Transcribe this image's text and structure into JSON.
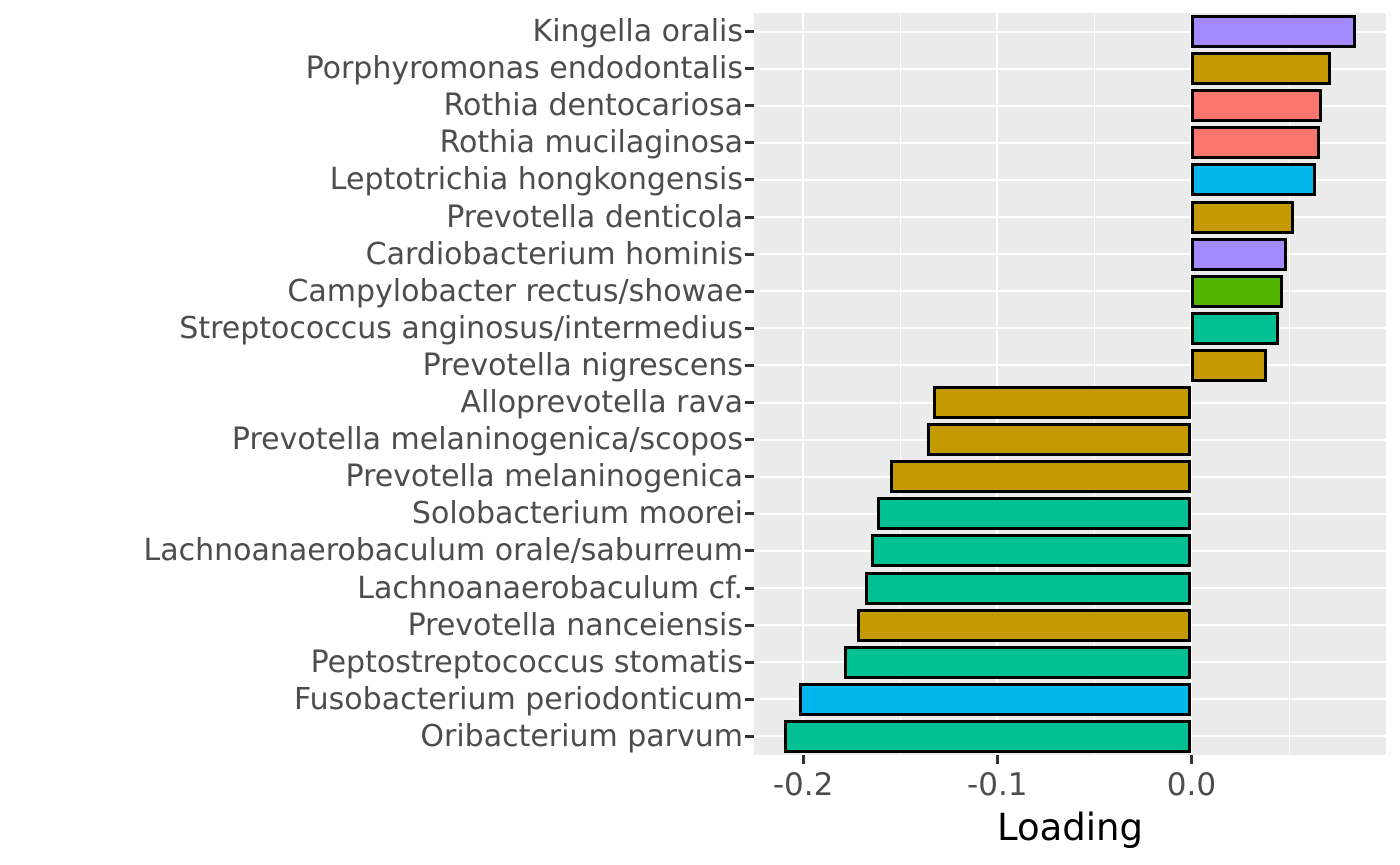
{
  "chart_data": {
    "type": "bar",
    "orientation": "horizontal",
    "title": "",
    "xlabel": "Loading",
    "ylabel": "",
    "xlim": [
      -0.2253,
      0.1002
    ],
    "x_major_ticks": [
      -0.2,
      -0.1,
      0.0
    ],
    "x_tick_labels": [
      "-0.2",
      "-0.1",
      "0.0"
    ],
    "x_minor_ticks": [
      -0.15,
      -0.05,
      0.05
    ],
    "grid": "white major gridlines at category centers and x major ticks, white minor gridlines at x minor ticks, on light gray panel",
    "legend": "none",
    "panel_background": "#EBEBEB",
    "bar_border_color": "#000000",
    "axis_text_color": "#4D4D4D",
    "axis_title_color": "#000000",
    "palette": {
      "purple": "#A58AFF",
      "dark_yellow": "#C49A00",
      "salmon": "#F8766D",
      "cyan": "#00B6EB",
      "green": "#53B400",
      "teal": "#00C094"
    },
    "categories": [
      "Kingella oralis",
      "Porphyromonas endodontalis",
      "Rothia dentocariosa",
      "Rothia mucilaginosa",
      "Leptotrichia hongkongensis",
      "Prevotella denticola",
      "Cardiobacterium hominis",
      "Campylobacter rectus/showae",
      "Streptococcus anginosus/intermedius",
      "Prevotella nigrescens",
      "Alloprevotella rava",
      "Prevotella melaninogenica/scopos",
      "Prevotella melaninogenica",
      "Solobacterium moorei",
      "Lachnoanaerobaculum orale/saburreum",
      "Lachnoanaerobaculum cf.",
      "Prevotella nanceiensis",
      "Peptostreptococcus stomatis",
      "Fusobacterium periodonticum",
      "Oribacterium parvum"
    ],
    "bars": [
      {
        "label": "Kingella oralis",
        "value": 0.085,
        "color": "#A58AFF"
      },
      {
        "label": "Porphyromonas endodontalis",
        "value": 0.072,
        "color": "#C49A00"
      },
      {
        "label": "Rothia dentocariosa",
        "value": 0.067,
        "color": "#F8766D"
      },
      {
        "label": "Rothia mucilaginosa",
        "value": 0.066,
        "color": "#F8766D"
      },
      {
        "label": "Leptotrichia hongkongensis",
        "value": 0.064,
        "color": "#00B6EB"
      },
      {
        "label": "Prevotella denticola",
        "value": 0.053,
        "color": "#C49A00"
      },
      {
        "label": "Cardiobacterium hominis",
        "value": 0.049,
        "color": "#A58AFF"
      },
      {
        "label": "Campylobacter rectus/showae",
        "value": 0.047,
        "color": "#53B400"
      },
      {
        "label": "Streptococcus anginosus/intermedius",
        "value": 0.045,
        "color": "#00C094"
      },
      {
        "label": "Prevotella nigrescens",
        "value": 0.039,
        "color": "#C49A00"
      },
      {
        "label": "Alloprevotella rava",
        "value": -0.133,
        "color": "#C49A00"
      },
      {
        "label": "Prevotella melaninogenica/scopos",
        "value": -0.136,
        "color": "#C49A00"
      },
      {
        "label": "Prevotella melaninogenica",
        "value": -0.155,
        "color": "#C49A00"
      },
      {
        "label": "Solobacterium moorei",
        "value": -0.162,
        "color": "#00C094"
      },
      {
        "label": "Lachnoanaerobaculum orale/saburreum",
        "value": -0.165,
        "color": "#00C094"
      },
      {
        "label": "Lachnoanaerobaculum cf.",
        "value": -0.168,
        "color": "#00C094"
      },
      {
        "label": "Prevotella nanceiensis",
        "value": -0.172,
        "color": "#C49A00"
      },
      {
        "label": "Peptostreptococcus stomatis",
        "value": -0.179,
        "color": "#00C094"
      },
      {
        "label": "Fusobacterium periodonticum",
        "value": -0.202,
        "color": "#00B6EB"
      },
      {
        "label": "Oribacterium parvum",
        "value": -0.21,
        "color": "#00C094"
      }
    ]
  }
}
